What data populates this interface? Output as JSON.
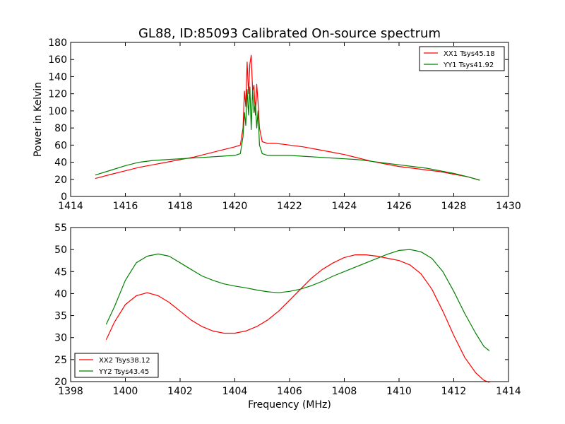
{
  "figure": {
    "title": "GL88, ID:85093 Calibrated On-source spectrum"
  },
  "chart_data": [
    {
      "type": "line",
      "title": "GL88, ID:85093 Calibrated On-source spectrum",
      "xlabel": "",
      "ylabel": "Power in Kelvin",
      "xlim": [
        1414,
        1430
      ],
      "ylim": [
        0,
        180
      ],
      "xticks": [
        "1414",
        "1416",
        "1418",
        "1420",
        "1422",
        "1424",
        "1426",
        "1428",
        "1430"
      ],
      "yticks": [
        "0",
        "20",
        "40",
        "60",
        "80",
        "100",
        "120",
        "140",
        "160",
        "180"
      ],
      "grid": false,
      "legend_position": "top-right",
      "series": [
        {
          "name": "XX1 Tsys45.18",
          "color": "#ff0000",
          "x": [
            1414.9,
            1415.5,
            1416.0,
            1416.5,
            1417.0,
            1417.5,
            1418.0,
            1418.5,
            1419.0,
            1419.5,
            1420.0,
            1420.2,
            1420.3,
            1420.35,
            1420.4,
            1420.45,
            1420.5,
            1420.55,
            1420.6,
            1420.65,
            1420.7,
            1420.75,
            1420.8,
            1420.85,
            1420.9,
            1421.0,
            1421.2,
            1421.5,
            1422.0,
            1422.5,
            1423.0,
            1423.5,
            1424.0,
            1424.5,
            1425.0,
            1425.5,
            1426.0,
            1426.5,
            1427.0,
            1427.5,
            1428.0,
            1428.5,
            1428.95
          ],
          "y": [
            21,
            26,
            30,
            34,
            37,
            40,
            43,
            46,
            50,
            54,
            58,
            60,
            80,
            123,
            105,
            157,
            120,
            155,
            165,
            123,
            130,
            95,
            131,
            110,
            80,
            64,
            62,
            62,
            60,
            58,
            55,
            52,
            49,
            45,
            41,
            38,
            35,
            33,
            31,
            29,
            26,
            23,
            19
          ]
        },
        {
          "name": "YY1 Tsys41.92",
          "color": "#008000",
          "x": [
            1414.9,
            1415.5,
            1416.0,
            1416.5,
            1417.0,
            1417.5,
            1418.0,
            1418.5,
            1419.0,
            1419.5,
            1420.0,
            1420.2,
            1420.3,
            1420.35,
            1420.4,
            1420.45,
            1420.5,
            1420.55,
            1420.6,
            1420.65,
            1420.7,
            1420.75,
            1420.8,
            1420.85,
            1420.9,
            1421.0,
            1421.2,
            1421.5,
            1422.0,
            1422.5,
            1423.0,
            1423.5,
            1424.0,
            1424.5,
            1425.0,
            1425.5,
            1426.0,
            1426.5,
            1427.0,
            1427.5,
            1428.0,
            1428.5,
            1428.95
          ],
          "y": [
            25,
            31,
            36,
            40,
            42,
            43,
            44,
            45,
            46,
            47,
            48,
            50,
            70,
            98,
            83,
            125,
            95,
            128,
            78,
            125,
            98,
            110,
            80,
            100,
            60,
            50,
            48,
            48,
            48,
            47,
            46,
            45,
            44,
            43,
            41,
            39,
            37,
            35,
            33,
            30,
            27,
            23,
            19
          ]
        }
      ]
    },
    {
      "type": "line",
      "title": "",
      "xlabel": "Frequency (MHz)",
      "ylabel": "",
      "xlim": [
        1398,
        1414
      ],
      "ylim": [
        20,
        55
      ],
      "xticks": [
        "1398",
        "1400",
        "1402",
        "1404",
        "1406",
        "1408",
        "1410",
        "1412",
        "1414"
      ],
      "yticks": [
        "20",
        "25",
        "30",
        "35",
        "40",
        "45",
        "50",
        "55"
      ],
      "grid": false,
      "legend_position": "bottom-left",
      "series": [
        {
          "name": "XX2 Tsys38.12",
          "color": "#ff0000",
          "x": [
            1399.3,
            1399.6,
            1400.0,
            1400.4,
            1400.8,
            1401.2,
            1401.6,
            1402.0,
            1402.4,
            1402.8,
            1403.2,
            1403.6,
            1404.0,
            1404.4,
            1404.8,
            1405.2,
            1405.6,
            1406.0,
            1406.4,
            1406.8,
            1407.2,
            1407.6,
            1408.0,
            1408.4,
            1408.8,
            1409.2,
            1409.6,
            1410.0,
            1410.4,
            1410.8,
            1411.2,
            1411.6,
            1412.0,
            1412.4,
            1412.8,
            1413.1,
            1413.3
          ],
          "y": [
            29.5,
            33.5,
            37.5,
            39.5,
            40.2,
            39.5,
            38,
            36,
            34,
            32.5,
            31.5,
            31,
            31,
            31.5,
            32.5,
            34,
            36,
            38.5,
            41,
            43.5,
            45.5,
            47,
            48.2,
            48.8,
            48.8,
            48.5,
            48,
            47.5,
            46.5,
            44.5,
            41,
            36,
            30.5,
            25.5,
            22,
            20.3,
            19.8
          ]
        },
        {
          "name": "YY2 Tsys43.45",
          "color": "#008000",
          "x": [
            1399.3,
            1399.6,
            1400.0,
            1400.4,
            1400.8,
            1401.2,
            1401.6,
            1402.0,
            1402.4,
            1402.8,
            1403.2,
            1403.6,
            1404.0,
            1404.4,
            1404.8,
            1405.2,
            1405.6,
            1406.0,
            1406.4,
            1406.8,
            1407.2,
            1407.6,
            1408.0,
            1408.4,
            1408.8,
            1409.2,
            1409.6,
            1410.0,
            1410.4,
            1410.8,
            1411.2,
            1411.6,
            1412.0,
            1412.4,
            1412.8,
            1413.1,
            1413.3
          ],
          "y": [
            33,
            37,
            43,
            47,
            48.5,
            49,
            48.5,
            47,
            45.5,
            44,
            43,
            42.2,
            41.7,
            41.3,
            40.8,
            40.4,
            40.2,
            40.5,
            41,
            41.8,
            42.8,
            44,
            45,
            46,
            47,
            48,
            49,
            49.8,
            50,
            49.5,
            48,
            45,
            40.5,
            35.5,
            31,
            28,
            27
          ]
        }
      ]
    }
  ]
}
